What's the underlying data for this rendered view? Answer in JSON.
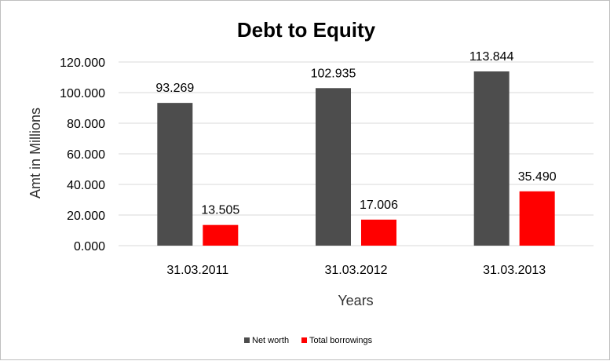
{
  "chart_data": {
    "type": "bar",
    "title": "Debt to Equity",
    "xlabel": "Years",
    "ylabel": "Amt in Millions",
    "categories": [
      "31.03.2011",
      "31.03.2012",
      "31.03.2013"
    ],
    "series": [
      {
        "name": "Net worth",
        "values": [
          93.269,
          102.935,
          113.844
        ],
        "color": "#4d4d4d",
        "labels": [
          "93.269",
          "102.935",
          "113.844"
        ]
      },
      {
        "name": "Total borrowings",
        "values": [
          13.505,
          17.006,
          35.49
        ],
        "color": "#ff0000",
        "labels": [
          "13.505",
          "17.006",
          "35.490"
        ]
      }
    ],
    "ylim": [
      0,
      120
    ],
    "yticks": [
      "0.000",
      "20.000",
      "40.000",
      "60.000",
      "80.000",
      "100.000",
      "120.000"
    ],
    "grid": true,
    "legend_position": "bottom"
  }
}
